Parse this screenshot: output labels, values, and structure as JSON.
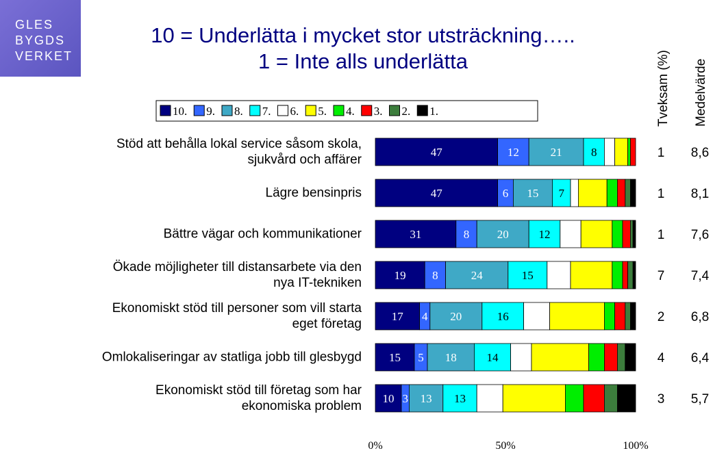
{
  "logo": [
    "GLES",
    "BYGDS",
    "VERKET"
  ],
  "chart_data": {
    "type": "stacked-barh",
    "title": [
      "10 = Underlätta i mycket stor utsträckning…..",
      "1 = Inte alls underlätta"
    ],
    "categories": [
      "Stöd att behålla lokal service såsom skola,\nsjukvård och affärer",
      "Lägre bensinpris",
      "Bättre vägar och kommunikationer",
      "Ökade möjligheter till distansarbete via den\nnya IT-tekniken",
      "Ekonomiskt stöd till personer som vill starta\neget företag",
      "Omlokaliseringar av statliga jobb till glesbygd",
      "Ekonomiskt stöd till företag som har\nekonomiska problem"
    ],
    "series": [
      {
        "name": "10.",
        "color": "#000080",
        "show_labels": true,
        "label_color": "#ffffff",
        "values": [
          47,
          47,
          31,
          19,
          17,
          15,
          10
        ]
      },
      {
        "name": "9.",
        "color": "#3366ff",
        "show_labels": true,
        "label_color": "#ffffff",
        "values": [
          12,
          6,
          8,
          8,
          4,
          5,
          3
        ]
      },
      {
        "name": "8.",
        "color": "#3fa9c6",
        "show_labels": true,
        "label_color": "#ffffff",
        "values": [
          21,
          15,
          20,
          24,
          20,
          18,
          13
        ]
      },
      {
        "name": "7.",
        "color": "#00ffff",
        "show_labels": true,
        "label_color": "#000000",
        "values": [
          8,
          7,
          12,
          15,
          16,
          14,
          13
        ]
      },
      {
        "name": "6.",
        "color": "#ffffff",
        "values": [
          4,
          3,
          8,
          9,
          10,
          8,
          10
        ]
      },
      {
        "name": "5.",
        "color": "#ffff00",
        "values": [
          5,
          11,
          12,
          16,
          21,
          22,
          24
        ]
      },
      {
        "name": "4.",
        "color": "#00ee00",
        "values": [
          1,
          4,
          4,
          4,
          4,
          6,
          7
        ]
      },
      {
        "name": "3.",
        "color": "#ff0000",
        "values": [
          2,
          3,
          3,
          2,
          4,
          5,
          8
        ]
      },
      {
        "name": "2.",
        "color": "#3c7d3c",
        "values": [
          0,
          2,
          1,
          2,
          2,
          3,
          5
        ]
      },
      {
        "name": "1.",
        "color": "#000000",
        "values": [
          0,
          2,
          1,
          1,
          2,
          4,
          7
        ]
      }
    ],
    "xlim": [
      0,
      100
    ],
    "xticks": [
      {
        "value": 0,
        "label": "0%"
      },
      {
        "value": 50,
        "label": "50%"
      },
      {
        "value": 100,
        "label": "100%"
      }
    ],
    "tveksam": {
      "name": "Tveksam (%)",
      "values": [
        1,
        1,
        1,
        7,
        2,
        4,
        3
      ]
    },
    "medelvarde": {
      "name": "Medelvärde",
      "values": [
        8.6,
        8.1,
        7.6,
        7.4,
        6.8,
        6.4,
        5.7
      ],
      "value_labels": [
        "8,6",
        "8,1",
        "7,6",
        "7,4",
        "6,8",
        "6,4",
        "5,7"
      ]
    }
  }
}
